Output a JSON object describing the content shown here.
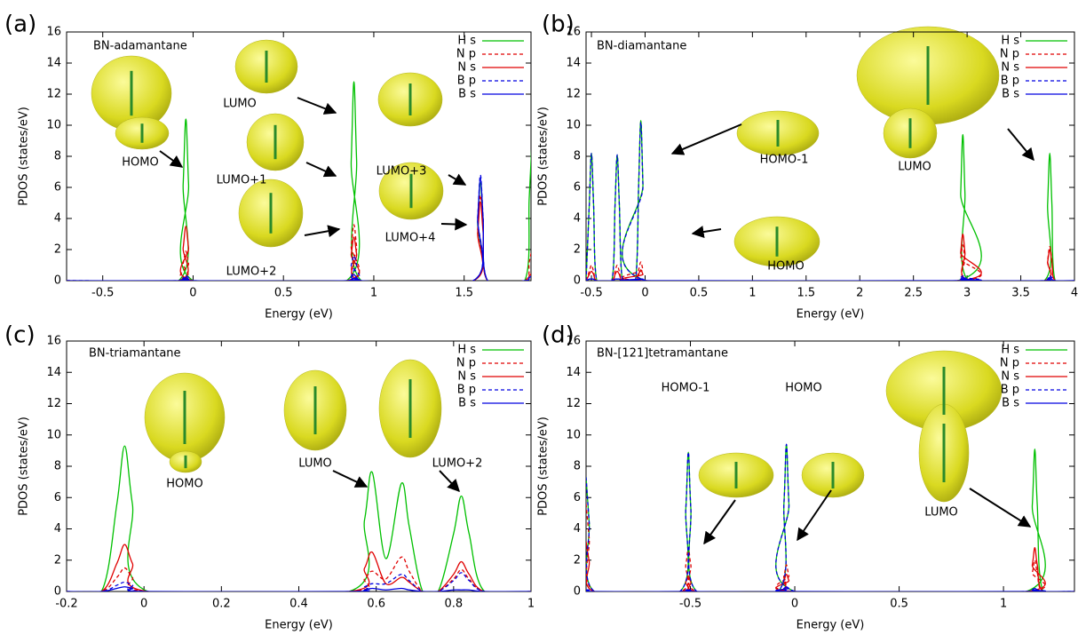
{
  "chart_data": [
    {
      "type": "line",
      "panel_label": "(a)",
      "title": "BN-adamantane",
      "xlabel": "Energy (eV)",
      "ylabel": "PDOS (states/eV)",
      "xlim": [
        -0.7,
        1.87
      ],
      "ylim": [
        0,
        16
      ],
      "xticks": [
        -0.5,
        0,
        0.5,
        1,
        1.5
      ],
      "yticks": [
        0,
        2,
        4,
        6,
        8,
        10,
        12,
        14,
        16
      ],
      "x": [
        -0.7,
        -0.08,
        -0.055,
        -0.04,
        -0.025,
        0,
        0.85,
        0.875,
        0.89,
        0.905,
        0.93,
        1.55,
        1.575,
        1.59,
        1.605,
        1.63,
        1.835,
        1.86,
        1.875
      ],
      "series": [
        {
          "name": "H s",
          "color": "#00c000",
          "dashed": false,
          "values": [
            0,
            0,
            6.2,
            10.4,
            6.2,
            0,
            0,
            7.7,
            12.8,
            7.7,
            0,
            0,
            3.8,
            6.3,
            3.8,
            0,
            0,
            5.3,
            8.9
          ]
        },
        {
          "name": "N p",
          "color": "#e00000",
          "dashed": true,
          "values": [
            0,
            0,
            1.1,
            1.9,
            1.1,
            0,
            0,
            2.2,
            3.6,
            2.2,
            0,
            0,
            3.3,
            5.5,
            3.3,
            0,
            0,
            1.2,
            2.0
          ]
        },
        {
          "name": "N s",
          "color": "#e00000",
          "dashed": false,
          "values": [
            0,
            0,
            2.1,
            3.5,
            2.1,
            0,
            0,
            1.7,
            2.8,
            1.7,
            0,
            0,
            3.1,
            5.1,
            3.1,
            0,
            0,
            0.3,
            0.5
          ]
        },
        {
          "name": "B p",
          "color": "#0000e0",
          "dashed": true,
          "values": [
            0,
            0,
            0.2,
            0.3,
            0.2,
            0,
            0,
            1,
            1.6,
            1,
            0,
            0,
            4.1,
            6.8,
            4.1,
            0,
            0,
            0.2,
            0.4
          ]
        },
        {
          "name": "B s",
          "color": "#0000e0",
          "dashed": false,
          "values": [
            0,
            0,
            0.1,
            0.2,
            0.1,
            0,
            0,
            0.2,
            0.4,
            0.2,
            0,
            0,
            4,
            6.6,
            4,
            0,
            0,
            0.2,
            0.3
          ]
        }
      ],
      "annotations": [
        "HOMO",
        "LUMO",
        "LUMO+1",
        "LUMO+2",
        "LUMO+3",
        "LUMO+4"
      ]
    },
    {
      "type": "line",
      "panel_label": "(b)",
      "title": "BN-diamantane",
      "xlabel": "Energy (eV)",
      "ylabel": "PDOS (states/eV)",
      "xlim": [
        -0.55,
        4
      ],
      "ylim": [
        0,
        16
      ],
      "xticks": [
        -0.5,
        0,
        0.5,
        1,
        1.5,
        2,
        2.5,
        3,
        3.5,
        4
      ],
      "yticks": [
        0,
        2,
        4,
        6,
        8,
        10,
        12,
        14,
        16
      ],
      "x": [
        -0.55,
        -0.52,
        -0.5,
        -0.48,
        -0.45,
        -0.31,
        -0.28,
        -0.26,
        -0.24,
        -0.21,
        -0.09,
        -0.06,
        -0.04,
        -0.02,
        0.01,
        2.91,
        2.94,
        2.96,
        2.98,
        3.01,
        3.72,
        3.75,
        3.77,
        3.79,
        3.82,
        4
      ],
      "series": [
        {
          "name": "H s",
          "color": "#00c000",
          "dashed": false,
          "values": [
            0,
            4.9,
            8.2,
            4.9,
            0,
            0,
            4.9,
            8.1,
            4.9,
            0,
            0,
            6.2,
            10.3,
            6.2,
            0,
            0,
            5.6,
            9.4,
            5.6,
            0,
            0,
            4.9,
            8.2,
            4.9,
            0,
            0
          ]
        },
        {
          "name": "N p",
          "color": "#e00000",
          "dashed": true,
          "values": [
            0,
            0.6,
            1,
            0.6,
            0,
            0,
            0.6,
            1,
            0.6,
            0,
            0,
            0.7,
            1.2,
            0.7,
            0,
            0,
            1.4,
            2.3,
            1.4,
            0,
            0,
            1.3,
            2.2,
            1.3,
            0,
            0
          ]
        },
        {
          "name": "N s",
          "color": "#e00000",
          "dashed": false,
          "values": [
            0,
            0.4,
            0.6,
            0.4,
            0,
            0,
            0.4,
            0.6,
            0.4,
            0,
            0,
            0.4,
            0.7,
            0.4,
            0,
            0,
            1.8,
            3,
            1.8,
            0,
            0,
            1.2,
            2,
            1.2,
            0,
            0
          ]
        },
        {
          "name": "B p",
          "color": "#0000e0",
          "dashed": true,
          "values": [
            0,
            4.9,
            8.2,
            4.9,
            0,
            0,
            4.9,
            8.1,
            4.9,
            0,
            0,
            6.1,
            10.2,
            6.1,
            0,
            0,
            0.2,
            0.3,
            0.2,
            0,
            0,
            0.2,
            0.3,
            0.2,
            0,
            0
          ]
        },
        {
          "name": "B s",
          "color": "#0000e0",
          "dashed": false,
          "values": [
            0,
            0.1,
            0.1,
            0.1,
            0,
            0,
            0.1,
            0.1,
            0.1,
            0,
            0,
            0.1,
            0.1,
            0.1,
            0,
            0,
            0.1,
            0.2,
            0.1,
            0,
            0,
            0.1,
            0.2,
            0.1,
            0,
            0
          ]
        }
      ],
      "annotations": [
        "HOMO-1",
        "HOMO",
        "LUMO"
      ]
    },
    {
      "type": "line",
      "panel_label": "(c)",
      "title": "BN-triamantane",
      "xlabel": "Energy (eV)",
      "ylabel": "PDOS (states/eV)",
      "xlim": [
        -0.2,
        1
      ],
      "ylim": [
        0,
        16
      ],
      "xticks": [
        -0.2,
        0,
        0.2,
        0.4,
        0.6,
        0.8,
        1
      ],
      "yticks": [
        0,
        2,
        4,
        6,
        8,
        10,
        12,
        14,
        16
      ],
      "x": [
        -0.2,
        -0.11,
        -0.07,
        -0.05,
        -0.03,
        0.01,
        0.53,
        0.57,
        0.59,
        0.625,
        0.665,
        0.685,
        0.72,
        0.76,
        0.8,
        0.82,
        0.84,
        0.88,
        1
      ],
      "series": [
        {
          "name": "H s",
          "color": "#00c000",
          "dashed": false,
          "values": [
            0,
            0,
            5.6,
            9.3,
            5.6,
            0,
            0,
            4.6,
            7.6,
            2.1,
            6.9,
            4.2,
            0,
            0,
            3.7,
            6.1,
            3.7,
            0,
            0
          ]
        },
        {
          "name": "N p",
          "color": "#e00000",
          "dashed": true,
          "values": [
            0,
            0,
            0.9,
            1.5,
            0.9,
            0,
            0,
            0.8,
            1.3,
            0.8,
            2.2,
            1.3,
            0,
            0,
            0.8,
            1.4,
            0.8,
            0,
            0
          ]
        },
        {
          "name": "N s",
          "color": "#e00000",
          "dashed": false,
          "values": [
            0,
            0,
            1.8,
            3,
            1.8,
            0,
            0,
            1.5,
            2.5,
            0.5,
            0.9,
            0.6,
            0,
            0,
            1.1,
            1.9,
            1.1,
            0,
            0
          ]
        },
        {
          "name": "B p",
          "color": "#0000e0",
          "dashed": true,
          "values": [
            0,
            0,
            0.4,
            0.6,
            0.4,
            0,
            0,
            0.3,
            0.5,
            0.5,
            1.1,
            0.7,
            0,
            0,
            0.7,
            1.2,
            0.7,
            0,
            0
          ]
        },
        {
          "name": "B s",
          "color": "#0000e0",
          "dashed": false,
          "values": [
            0,
            0,
            0.2,
            0.3,
            0.2,
            0,
            0,
            0.1,
            0.2,
            0.1,
            0.2,
            0.1,
            0,
            0,
            0.1,
            0.1,
            0.1,
            0,
            0
          ]
        }
      ],
      "annotations": [
        "HOMO",
        "LUMO",
        "LUMO+2"
      ]
    },
    {
      "type": "line",
      "panel_label": "(d)",
      "title": "BN-[121]tetramantane",
      "xlabel": "Energy (eV)",
      "ylabel": "PDOS (states/eV)",
      "xlim": [
        -1,
        1.34
      ],
      "ylim": [
        0,
        16
      ],
      "xticks": [
        -0.5,
        0,
        0.5,
        1
      ],
      "yticks": [
        0,
        2,
        4,
        6,
        8,
        10,
        12,
        14,
        16
      ],
      "x": [
        -1,
        -0.985,
        -0.96,
        -0.55,
        -0.522,
        -0.51,
        -0.498,
        -0.47,
        -0.08,
        -0.052,
        -0.04,
        -0.028,
        0,
        1.11,
        1.138,
        1.15,
        1.162,
        1.19,
        1.34
      ],
      "series": [
        {
          "name": "H s",
          "color": "#00c000",
          "dashed": false,
          "values": [
            7.3,
            4.4,
            0,
            0,
            5.3,
            8.9,
            5.3,
            0,
            0,
            5.6,
            9.4,
            5.6,
            0,
            0,
            5.5,
            9.1,
            5.5,
            0,
            0
          ]
        },
        {
          "name": "N p",
          "color": "#e00000",
          "dashed": true,
          "values": [
            5.6,
            3.4,
            0,
            0,
            1.7,
            2.8,
            1.7,
            0,
            0,
            1,
            1.7,
            1,
            0,
            0,
            1.2,
            2,
            1.2,
            0,
            0
          ]
        },
        {
          "name": "N s",
          "color": "#e00000",
          "dashed": false,
          "values": [
            3.2,
            1.9,
            0,
            0,
            0.6,
            1,
            0.6,
            0,
            0,
            0.7,
            1.1,
            0.7,
            0,
            0,
            1.7,
            2.8,
            1.7,
            0,
            0
          ]
        },
        {
          "name": "B p",
          "color": "#0000e0",
          "dashed": true,
          "values": [
            7.3,
            4.4,
            0,
            0,
            5.3,
            8.9,
            5.3,
            0,
            0,
            5.6,
            9.4,
            5.6,
            0,
            0,
            0.1,
            0.2,
            0.1,
            0,
            0
          ]
        },
        {
          "name": "B s",
          "color": "#0000e0",
          "dashed": false,
          "values": [
            0.1,
            0.1,
            0,
            0,
            0.1,
            0.1,
            0.1,
            0,
            0,
            0.2,
            0.3,
            0.2,
            0,
            0,
            0.1,
            0.2,
            0.1,
            0,
            0
          ]
        }
      ],
      "annotations": [
        "HOMO-1",
        "HOMO",
        "LUMO"
      ]
    }
  ]
}
